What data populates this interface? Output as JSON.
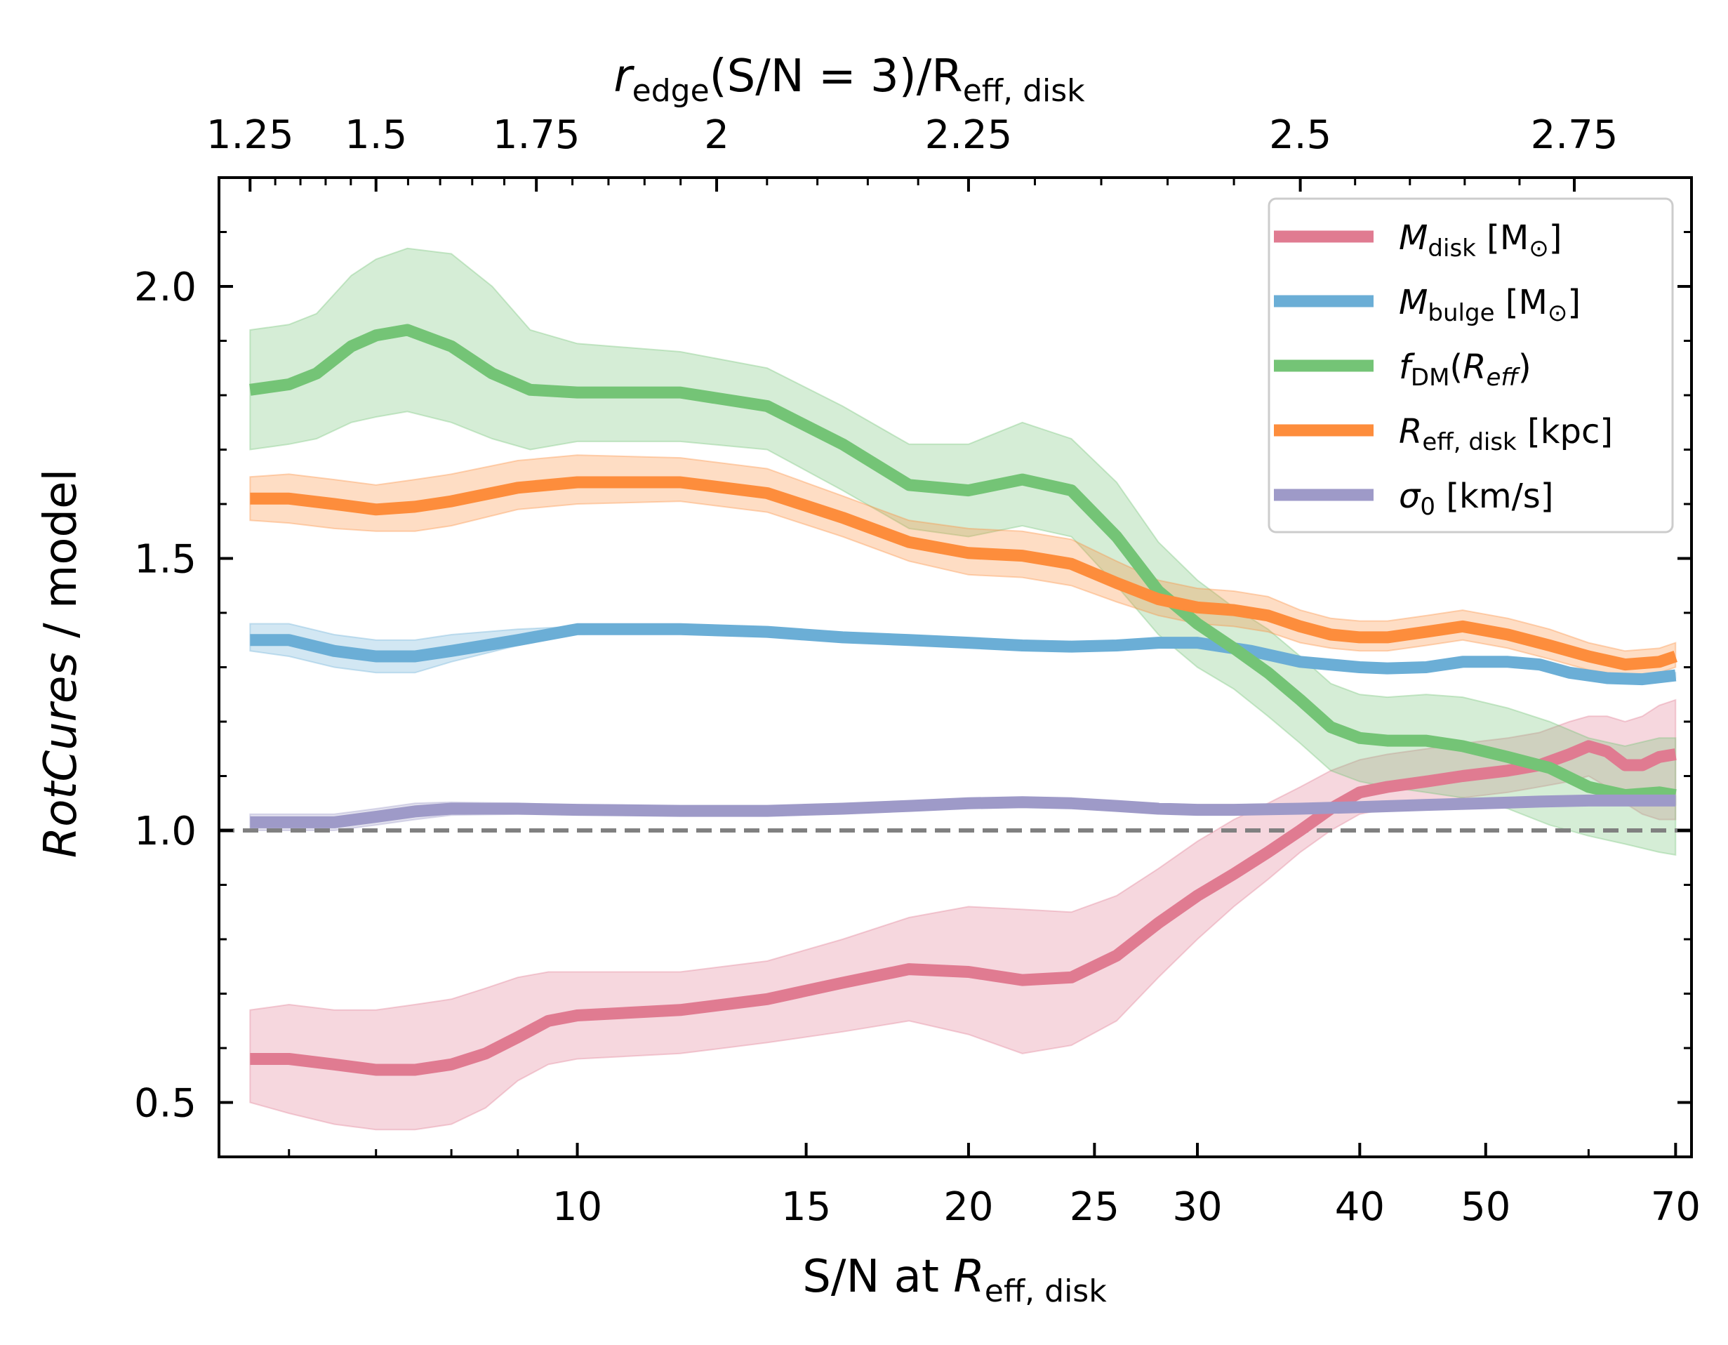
{
  "chart_data": {
    "type": "line",
    "xscale": "log",
    "xlim": [
      5.3,
      72
    ],
    "ylim": [
      0.4,
      2.2
    ],
    "x_ticks": [
      10,
      15,
      20,
      25,
      30,
      40,
      50,
      70
    ],
    "x_tick_labels": [
      "10",
      "15",
      "20",
      "25",
      "30",
      "40",
      "50",
      "70"
    ],
    "y_ticks": [
      0.5,
      1.0,
      1.5,
      2.0
    ],
    "y_tick_labels": [
      "0.5",
      "1.0",
      "1.5",
      "2.0"
    ],
    "top_ticks_at": [
      5.6,
      7.0,
      9.3,
      12.8,
      20.0,
      36.0,
      58.5
    ],
    "top_tick_labels": [
      "1.25",
      "1.5",
      "1.75",
      "2",
      "2.25",
      "2.5",
      "2.75"
    ],
    "xlabel": {
      "pre": "S/N at ",
      "main": "R",
      "sub": "eff, disk"
    },
    "ylabel": {
      "italic": "RotCures",
      "rest": " / model"
    },
    "top_xlabel": {
      "main": "r",
      "sub1": "edge",
      "mid": "(S/N = 3)/R",
      "sub2": "eff, disk"
    },
    "reference_line": {
      "y": 1.0,
      "color": "#808080",
      "style": "dashed"
    },
    "legend_position": "upper-right",
    "series": [
      {
        "name": "Mdisk",
        "label": {
          "main": "M",
          "sub": "disk",
          "rest": " [M",
          "odot": "⊙",
          "end": "]"
        },
        "color": "#e07b91",
        "x": [
          5.6,
          6.0,
          6.5,
          7.0,
          7.5,
          8.0,
          8.5,
          9.0,
          9.5,
          10,
          12,
          14,
          16,
          18,
          20,
          22,
          24,
          26,
          28,
          30,
          32,
          34,
          36,
          38,
          40,
          42,
          45,
          48,
          52,
          55,
          58,
          60,
          62,
          64,
          66,
          68,
          70
        ],
        "values": [
          0.58,
          0.58,
          0.57,
          0.56,
          0.56,
          0.57,
          0.59,
          0.62,
          0.65,
          0.66,
          0.67,
          0.69,
          0.72,
          0.745,
          0.74,
          0.725,
          0.73,
          0.77,
          0.83,
          0.88,
          0.92,
          0.96,
          1.0,
          1.04,
          1.07,
          1.08,
          1.09,
          1.1,
          1.11,
          1.12,
          1.14,
          1.155,
          1.145,
          1.12,
          1.12,
          1.135,
          1.14
        ],
        "lower": [
          0.5,
          0.48,
          0.46,
          0.45,
          0.45,
          0.46,
          0.49,
          0.54,
          0.57,
          0.58,
          0.59,
          0.61,
          0.63,
          0.65,
          0.625,
          0.59,
          0.605,
          0.65,
          0.73,
          0.8,
          0.86,
          0.91,
          0.96,
          1.0,
          1.03,
          1.04,
          1.05,
          1.06,
          1.07,
          1.08,
          1.09,
          1.1,
          1.08,
          1.05,
          1.03,
          1.02,
          1.02
        ],
        "upper": [
          0.67,
          0.68,
          0.67,
          0.67,
          0.68,
          0.69,
          0.71,
          0.73,
          0.74,
          0.74,
          0.74,
          0.76,
          0.8,
          0.84,
          0.86,
          0.855,
          0.85,
          0.88,
          0.93,
          0.98,
          1.02,
          1.05,
          1.08,
          1.11,
          1.13,
          1.14,
          1.15,
          1.16,
          1.17,
          1.18,
          1.2,
          1.21,
          1.21,
          1.2,
          1.21,
          1.23,
          1.24
        ]
      },
      {
        "name": "Mbulge",
        "label": {
          "main": "M",
          "sub": "bulge",
          "rest": " [M",
          "odot": "⊙",
          "end": "]"
        },
        "color": "#6baed6",
        "x": [
          5.6,
          6.0,
          6.5,
          7.0,
          7.5,
          8.0,
          9.0,
          10,
          12,
          14,
          16,
          18,
          20,
          22,
          24,
          26,
          28,
          30,
          33,
          36,
          40,
          42,
          45,
          48,
          52,
          55,
          58,
          62,
          66,
          70
        ],
        "values": [
          1.35,
          1.35,
          1.33,
          1.32,
          1.32,
          1.33,
          1.35,
          1.37,
          1.37,
          1.365,
          1.355,
          1.35,
          1.345,
          1.34,
          1.338,
          1.34,
          1.345,
          1.345,
          1.33,
          1.31,
          1.3,
          1.298,
          1.3,
          1.31,
          1.31,
          1.305,
          1.29,
          1.28,
          1.278,
          1.285
        ],
        "lower": [
          1.33,
          1.32,
          1.3,
          1.29,
          1.29,
          1.31,
          1.34,
          1.36,
          1.365,
          1.36,
          1.35,
          1.345,
          1.34,
          1.335,
          1.333,
          1.335,
          1.34,
          1.34,
          1.325,
          1.305,
          1.295,
          1.293,
          1.295,
          1.305,
          1.305,
          1.3,
          1.285,
          1.275,
          1.273,
          1.28
        ],
        "upper": [
          1.38,
          1.38,
          1.36,
          1.35,
          1.35,
          1.36,
          1.37,
          1.375,
          1.375,
          1.37,
          1.36,
          1.355,
          1.35,
          1.345,
          1.343,
          1.345,
          1.35,
          1.35,
          1.335,
          1.315,
          1.305,
          1.303,
          1.305,
          1.315,
          1.315,
          1.31,
          1.295,
          1.285,
          1.283,
          1.29
        ]
      },
      {
        "name": "fDM",
        "label": {
          "main": "f",
          "sub": "DM",
          "rest": "(",
          "italic2": "R",
          "sub2": "eff",
          "end": ")"
        },
        "color": "#74c476",
        "x": [
          5.6,
          6.0,
          6.3,
          6.7,
          7.0,
          7.4,
          8.0,
          8.6,
          9.2,
          10,
          12,
          14,
          16,
          18,
          20,
          22,
          24,
          26,
          28,
          30,
          32,
          34,
          36,
          38,
          40,
          42,
          45,
          48,
          52,
          56,
          60,
          64,
          68,
          70
        ],
        "values": [
          1.81,
          1.82,
          1.84,
          1.89,
          1.91,
          1.92,
          1.89,
          1.84,
          1.81,
          1.805,
          1.805,
          1.78,
          1.71,
          1.635,
          1.625,
          1.645,
          1.625,
          1.54,
          1.44,
          1.38,
          1.335,
          1.29,
          1.24,
          1.19,
          1.17,
          1.165,
          1.165,
          1.155,
          1.135,
          1.115,
          1.08,
          1.065,
          1.07,
          1.065
        ],
        "lower": [
          1.7,
          1.71,
          1.72,
          1.75,
          1.76,
          1.77,
          1.75,
          1.72,
          1.7,
          1.715,
          1.715,
          1.7,
          1.625,
          1.555,
          1.54,
          1.56,
          1.54,
          1.45,
          1.36,
          1.3,
          1.26,
          1.21,
          1.16,
          1.11,
          1.09,
          1.08,
          1.07,
          1.06,
          1.04,
          1.01,
          0.99,
          0.975,
          0.96,
          0.955
        ],
        "upper": [
          1.92,
          1.93,
          1.95,
          2.02,
          2.05,
          2.07,
          2.06,
          2.0,
          1.92,
          1.895,
          1.88,
          1.85,
          1.78,
          1.71,
          1.71,
          1.75,
          1.72,
          1.64,
          1.53,
          1.46,
          1.41,
          1.37,
          1.32,
          1.27,
          1.25,
          1.245,
          1.25,
          1.245,
          1.225,
          1.2,
          1.17,
          1.155,
          1.17,
          1.17
        ]
      },
      {
        "name": "Reff,disk",
        "label": {
          "main": "R",
          "sub": "eff, disk",
          "rest": " [kpc]"
        },
        "color": "#fd8d3c",
        "x": [
          5.6,
          6.0,
          6.5,
          7.0,
          7.5,
          8.0,
          9.0,
          10,
          12,
          14,
          16,
          18,
          20,
          22,
          24,
          26,
          28,
          30,
          32,
          34,
          36,
          38,
          40,
          42,
          45,
          48,
          52,
          56,
          60,
          64,
          68,
          70
        ],
        "values": [
          1.61,
          1.61,
          1.6,
          1.59,
          1.595,
          1.605,
          1.63,
          1.64,
          1.64,
          1.62,
          1.575,
          1.53,
          1.51,
          1.505,
          1.49,
          1.455,
          1.425,
          1.41,
          1.405,
          1.395,
          1.375,
          1.36,
          1.355,
          1.355,
          1.365,
          1.375,
          1.36,
          1.34,
          1.32,
          1.305,
          1.31,
          1.32
        ],
        "lower": [
          1.57,
          1.565,
          1.555,
          1.55,
          1.55,
          1.56,
          1.59,
          1.6,
          1.605,
          1.585,
          1.54,
          1.495,
          1.47,
          1.465,
          1.45,
          1.42,
          1.395,
          1.38,
          1.375,
          1.365,
          1.345,
          1.335,
          1.33,
          1.33,
          1.34,
          1.35,
          1.335,
          1.315,
          1.295,
          1.285,
          1.29,
          1.3
        ],
        "upper": [
          1.65,
          1.655,
          1.645,
          1.635,
          1.645,
          1.655,
          1.68,
          1.69,
          1.685,
          1.665,
          1.615,
          1.57,
          1.555,
          1.55,
          1.535,
          1.495,
          1.46,
          1.445,
          1.44,
          1.43,
          1.405,
          1.39,
          1.385,
          1.385,
          1.395,
          1.405,
          1.39,
          1.37,
          1.345,
          1.33,
          1.335,
          1.345
        ]
      },
      {
        "name": "sigma0",
        "label": {
          "main": "σ",
          "sub": "0",
          "rest": " [km/s]"
        },
        "color": "#9e9ac8",
        "x": [
          5.6,
          6.0,
          6.5,
          7.0,
          7.5,
          8.0,
          9.0,
          10,
          12,
          14,
          16,
          18,
          20,
          22,
          24,
          26,
          28,
          30,
          32,
          36,
          40,
          45,
          50,
          55,
          60,
          65,
          70
        ],
        "values": [
          1.015,
          1.015,
          1.015,
          1.025,
          1.035,
          1.04,
          1.04,
          1.038,
          1.036,
          1.036,
          1.04,
          1.045,
          1.05,
          1.052,
          1.05,
          1.045,
          1.04,
          1.038,
          1.038,
          1.04,
          1.043,
          1.047,
          1.05,
          1.053,
          1.055,
          1.055,
          1.055
        ],
        "lower": [
          1.0,
          1.0,
          1.0,
          1.01,
          1.02,
          1.028,
          1.03,
          1.03,
          1.028,
          1.028,
          1.032,
          1.037,
          1.042,
          1.044,
          1.042,
          1.037,
          1.032,
          1.03,
          1.03,
          1.032,
          1.035,
          1.039,
          1.042,
          1.045,
          1.047,
          1.047,
          1.047
        ],
        "upper": [
          1.03,
          1.03,
          1.03,
          1.04,
          1.05,
          1.052,
          1.05,
          1.046,
          1.044,
          1.044,
          1.048,
          1.053,
          1.058,
          1.06,
          1.058,
          1.053,
          1.048,
          1.046,
          1.046,
          1.048,
          1.051,
          1.055,
          1.058,
          1.061,
          1.063,
          1.063,
          1.063
        ]
      }
    ]
  }
}
